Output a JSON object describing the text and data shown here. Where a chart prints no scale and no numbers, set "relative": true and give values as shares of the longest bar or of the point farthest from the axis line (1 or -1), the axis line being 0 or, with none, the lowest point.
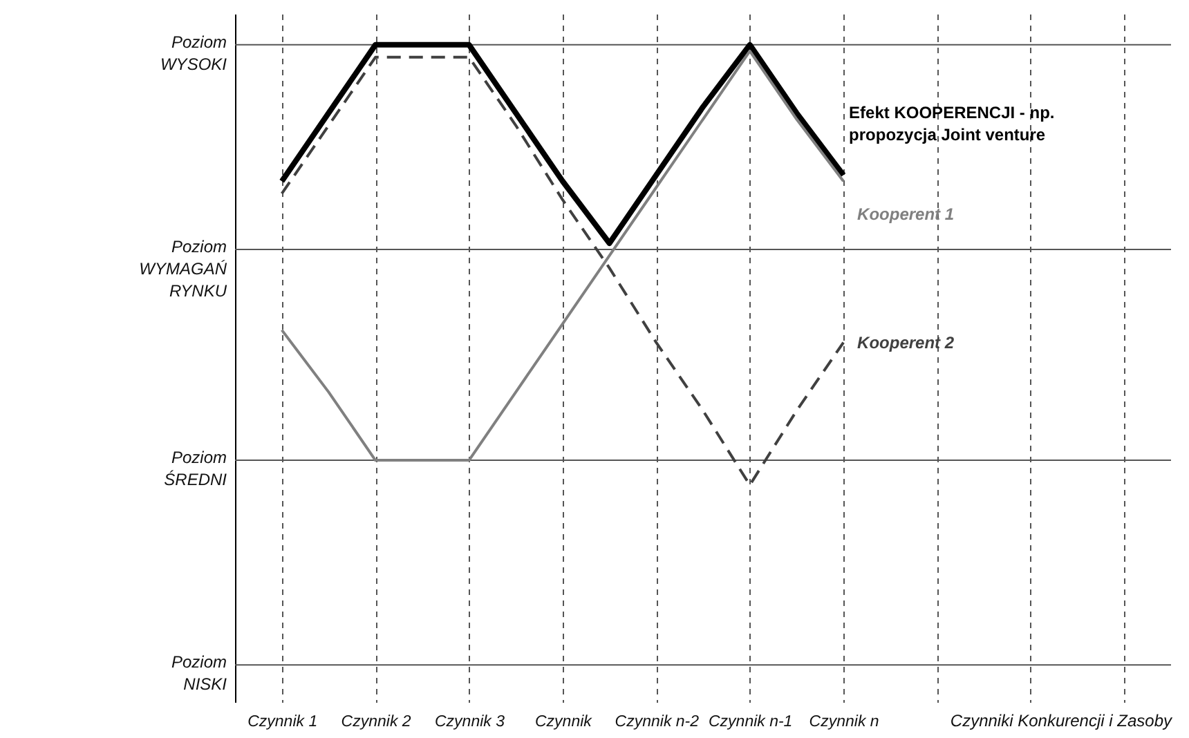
{
  "chart_data": {
    "type": "line",
    "xlabel": "Czynniki Konkurencji i Zasoby",
    "relative": true,
    "categories": [
      "Czynnik 1",
      null,
      "Czynnik 2",
      null,
      "Czynnik 3",
      null,
      "Czynnik",
      null,
      "Czynnik n-2",
      null,
      "Czynnik n-1",
      null,
      "Czynnik n",
      null,
      null,
      null,
      null,
      null,
      null
    ],
    "grid": "x",
    "marker": "none",
    "ref_lines": [
      {
        "axis": "y",
        "value": 0,
        "label": "Poziom NISKI",
        "color": "#555555"
      },
      {
        "axis": "y",
        "value": 0.33,
        "label": "Poziom ŚREDNI",
        "color": "#555555"
      },
      {
        "axis": "y",
        "value": 0.67,
        "label": "Poziom WYMAGAŃ RYNKU",
        "color": "#555555"
      },
      {
        "axis": "y",
        "value": 1,
        "label": "Poziom WYSOKI",
        "color": "#555555"
      }
    ],
    "series": [
      {
        "name": "Efekt KOOPERENCJI - np. propozycja Joint venture",
        "color": "#000000",
        "line_style": "solid",
        "values": [
          0.78,
          0.89,
          1,
          1,
          1,
          0.89,
          0.78,
          0.68,
          0.79,
          0.9,
          1,
          0.89,
          0.79,
          null,
          null,
          null,
          null,
          null,
          null
        ]
      },
      {
        "name": "Kooperent 1",
        "color": "#808080",
        "line_style": "solid",
        "values": [
          0.54,
          0.44,
          0.33,
          0.33,
          0.33,
          0.44,
          0.55,
          0.66,
          0.77,
          0.88,
          0.99,
          0.88,
          0.78,
          null,
          null,
          null,
          null,
          null,
          null
        ]
      },
      {
        "name": "Kooperent 2",
        "color": "#404040",
        "line_style": "dashed",
        "values": [
          0.76,
          0.87,
          0.98,
          0.98,
          0.98,
          0.87,
          0.75,
          0.64,
          0.52,
          0.41,
          0.29,
          0.41,
          0.52,
          null,
          null,
          null,
          null,
          null,
          null
        ]
      }
    ]
  }
}
